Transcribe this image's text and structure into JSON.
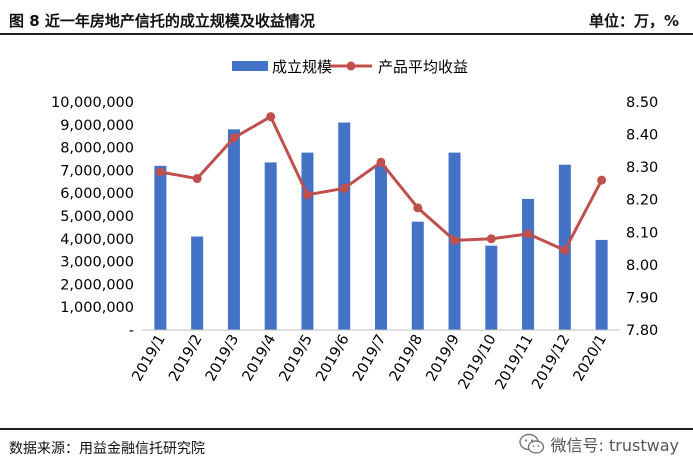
{
  "header": {
    "title": "图 8 近一年房地产信托的成立规模及收益情况",
    "unit": "单位：万，%"
  },
  "footer": {
    "source": "数据来源：用益金融信托研究院",
    "watermark": "微信号: trustway"
  },
  "icons": {
    "watermark": "wechat-icon"
  },
  "colors": {
    "bar": "#4472c4",
    "line": "#c0504d",
    "text": "#000000",
    "rule": "#1f1f1f"
  },
  "chart_data": {
    "type": "bar",
    "categories": [
      "2019/1",
      "2019/2",
      "2019/3",
      "2019/4",
      "2019/5",
      "2019/6",
      "2019/7",
      "2019/8",
      "2019/9",
      "2019/10",
      "2019/11",
      "2019/12",
      "2020/1"
    ],
    "series": [
      {
        "name": "成立规模",
        "type": "bar",
        "axis": "left",
        "values": [
          7200000,
          4100000,
          8800000,
          7350000,
          7780000,
          9100000,
          7200000,
          4750000,
          7780000,
          3700000,
          5750000,
          7250000,
          3950000
        ]
      },
      {
        "name": "产品平均收益",
        "type": "line",
        "axis": "right",
        "values": [
          8.285,
          8.265,
          8.39,
          8.455,
          8.215,
          8.235,
          8.315,
          8.175,
          8.075,
          8.08,
          8.095,
          8.045,
          8.26
        ]
      }
    ],
    "y_left": {
      "range": [
        0,
        10000000
      ],
      "ticks": [
        "-",
        "1,000,000",
        "2,000,000",
        "3,000,000",
        "4,000,000",
        "5,000,000",
        "6,000,000",
        "7,000,000",
        "8,000,000",
        "9,000,000",
        "10,000,000"
      ]
    },
    "y_right": {
      "range": [
        7.8,
        8.5
      ],
      "ticks": [
        "7.80",
        "7.90",
        "8.00",
        "8.10",
        "8.20",
        "8.30",
        "8.40",
        "8.50"
      ]
    },
    "legend": "top-center",
    "grid": false
  }
}
